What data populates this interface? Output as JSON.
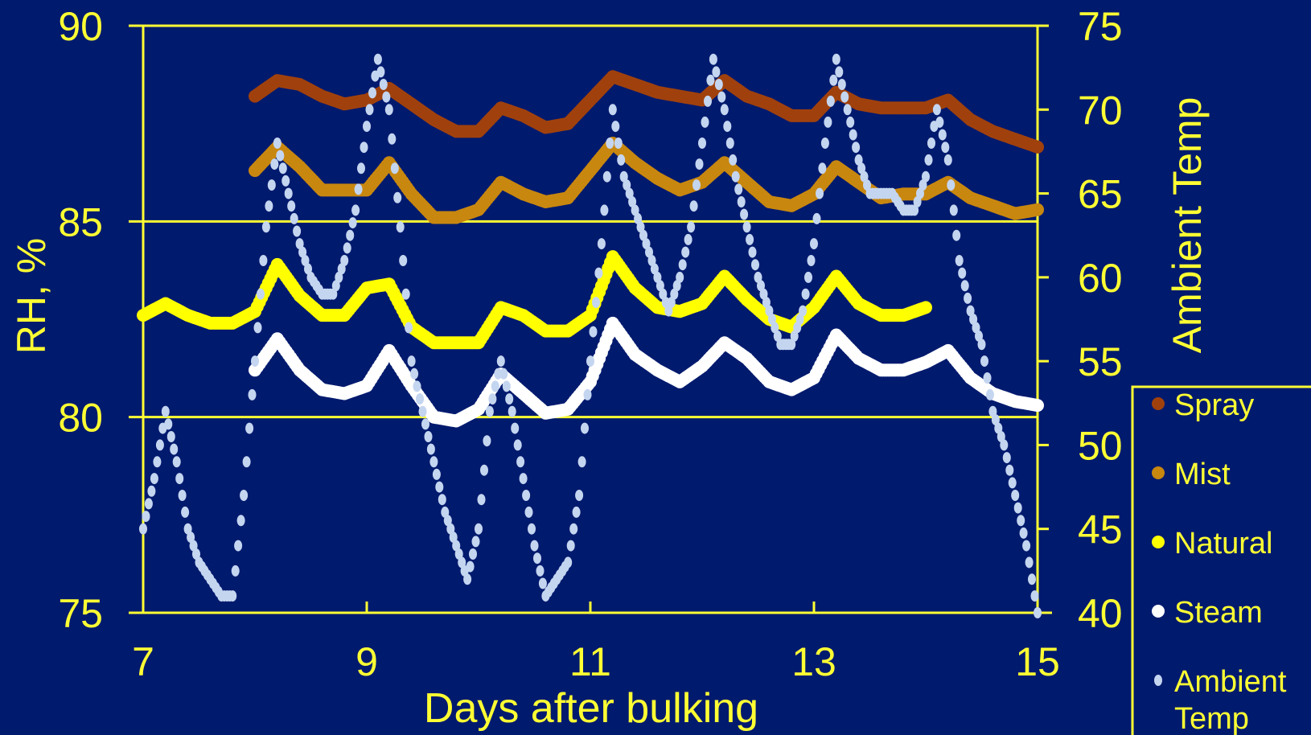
{
  "chart_data": {
    "type": "scatter",
    "title": "",
    "xlabel": "Days after bulking",
    "ylabel": "RH, %",
    "y2label": "Ambient Temp",
    "xlim": [
      7,
      15
    ],
    "ylim": [
      75,
      90
    ],
    "y2lim": [
      40,
      75
    ],
    "xticks": [
      "7",
      "9",
      "11",
      "13",
      "15"
    ],
    "yticks": [
      "75",
      "80",
      "85",
      "90"
    ],
    "y2ticks": [
      "40",
      "45",
      "50",
      "55",
      "60",
      "65",
      "70",
      "75"
    ],
    "grid": "horizontal at 80, 85, 90",
    "legend_placement": "bottom-right",
    "background_color": "#001a6e",
    "axis_color": "#ffff33",
    "series": [
      {
        "name": "Spray",
        "color": "#a0410d",
        "axis": "left",
        "x": [
          8.0,
          8.2,
          8.4,
          8.6,
          8.8,
          9.0,
          9.2,
          9.4,
          9.6,
          9.8,
          10.0,
          10.2,
          10.4,
          10.6,
          10.8,
          11.0,
          11.2,
          11.4,
          11.6,
          11.8,
          12.0,
          12.2,
          12.4,
          12.6,
          12.8,
          13.0,
          13.2,
          13.4,
          13.6,
          13.8,
          14.0,
          14.2,
          14.4,
          14.6,
          14.8,
          15.0
        ],
        "y": [
          88.2,
          88.6,
          88.5,
          88.2,
          88.0,
          88.1,
          88.4,
          88.0,
          87.6,
          87.3,
          87.3,
          87.9,
          87.7,
          87.4,
          87.5,
          88.1,
          88.7,
          88.5,
          88.3,
          88.2,
          88.1,
          88.6,
          88.2,
          88.0,
          87.7,
          87.7,
          88.3,
          88.0,
          87.9,
          87.9,
          87.9,
          88.1,
          87.6,
          87.3,
          87.1,
          86.9
        ]
      },
      {
        "name": "Mist",
        "color": "#c8870f",
        "axis": "left",
        "x": [
          8.0,
          8.2,
          8.4,
          8.6,
          8.8,
          9.0,
          9.2,
          9.4,
          9.6,
          9.8,
          10.0,
          10.2,
          10.4,
          10.6,
          10.8,
          11.0,
          11.2,
          11.4,
          11.6,
          11.8,
          12.0,
          12.2,
          12.4,
          12.6,
          12.8,
          13.0,
          13.2,
          13.4,
          13.6,
          13.8,
          14.0,
          14.2,
          14.4,
          14.6,
          14.8,
          15.0
        ],
        "y": [
          86.3,
          86.9,
          86.4,
          85.8,
          85.8,
          85.8,
          86.5,
          85.7,
          85.1,
          85.1,
          85.3,
          86.0,
          85.7,
          85.5,
          85.6,
          86.3,
          87.0,
          86.5,
          86.1,
          85.8,
          86.0,
          86.5,
          86.0,
          85.5,
          85.4,
          85.7,
          86.4,
          86.0,
          85.6,
          85.7,
          85.7,
          86.0,
          85.6,
          85.4,
          85.2,
          85.3
        ]
      },
      {
        "name": "Natural",
        "color": "#ffff00",
        "axis": "left",
        "x": [
          7.0,
          7.2,
          7.4,
          7.6,
          7.8,
          8.0,
          8.2,
          8.4,
          8.6,
          8.8,
          9.0,
          9.2,
          9.4,
          9.6,
          9.8,
          10.0,
          10.2,
          10.4,
          10.6,
          10.8,
          11.0,
          11.2,
          11.4,
          11.6,
          11.8,
          12.0,
          12.2,
          12.4,
          12.6,
          12.8,
          13.0,
          13.2,
          13.4,
          13.6,
          13.8,
          14.0
        ],
        "y": [
          82.6,
          82.9,
          82.6,
          82.4,
          82.4,
          82.7,
          83.9,
          83.1,
          82.6,
          82.6,
          83.3,
          83.4,
          82.3,
          81.9,
          81.9,
          81.9,
          82.8,
          82.6,
          82.2,
          82.2,
          82.6,
          84.1,
          83.3,
          82.8,
          82.7,
          82.9,
          83.6,
          83.0,
          82.5,
          82.3,
          82.8,
          83.6,
          82.9,
          82.6,
          82.6,
          82.8
        ]
      },
      {
        "name": "Steam",
        "color": "#ffffff",
        "axis": "left",
        "x": [
          8.0,
          8.2,
          8.4,
          8.6,
          8.8,
          9.0,
          9.2,
          9.4,
          9.6,
          9.8,
          10.0,
          10.2,
          10.4,
          10.6,
          10.8,
          11.0,
          11.2,
          11.4,
          11.6,
          11.8,
          12.0,
          12.2,
          12.4,
          12.6,
          12.8,
          13.0,
          13.2,
          13.4,
          13.6,
          13.8,
          14.0,
          14.2,
          14.4,
          14.6,
          14.8,
          15.0
        ],
        "y": [
          81.2,
          82.0,
          81.2,
          80.7,
          80.6,
          80.8,
          81.7,
          80.8,
          80.0,
          79.9,
          80.2,
          81.1,
          80.6,
          80.1,
          80.2,
          80.9,
          82.4,
          81.6,
          81.2,
          80.9,
          81.3,
          81.9,
          81.5,
          80.9,
          80.7,
          81.0,
          82.1,
          81.5,
          81.2,
          81.2,
          81.4,
          81.7,
          81.0,
          80.6,
          80.4,
          80.3
        ]
      },
      {
        "name": "Ambient Temp",
        "color": "#c4d5f0",
        "axis": "right",
        "x": [
          7.0,
          7.1,
          7.2,
          7.3,
          7.4,
          7.5,
          7.6,
          7.7,
          7.8,
          7.9,
          8.0,
          8.1,
          8.2,
          8.3,
          8.4,
          8.5,
          8.6,
          8.7,
          8.8,
          8.9,
          9.0,
          9.1,
          9.2,
          9.3,
          9.4,
          9.5,
          9.6,
          9.7,
          9.8,
          9.9,
          10.0,
          10.1,
          10.2,
          10.3,
          10.4,
          10.5,
          10.6,
          10.7,
          10.8,
          10.9,
          11.0,
          11.1,
          11.2,
          11.3,
          11.4,
          11.5,
          11.6,
          11.7,
          11.8,
          11.9,
          12.0,
          12.1,
          12.2,
          12.3,
          12.4,
          12.5,
          12.6,
          12.7,
          12.8,
          12.9,
          13.0,
          13.1,
          13.2,
          13.3,
          13.4,
          13.5,
          13.6,
          13.7,
          13.8,
          13.9,
          14.0,
          14.1,
          14.2,
          14.3,
          14.4,
          14.5,
          14.6,
          14.7,
          14.8,
          14.9,
          15.0
        ],
        "y": [
          45,
          48,
          52,
          49,
          45,
          43,
          42,
          41,
          41,
          47,
          55,
          63,
          68,
          65,
          62,
          60,
          59,
          59,
          61,
          64,
          69,
          73,
          70,
          63,
          55,
          52,
          49,
          46,
          44,
          42,
          45,
          52,
          55,
          52,
          48,
          44,
          41,
          42,
          43,
          47,
          55,
          62,
          70,
          66,
          64,
          62,
          60,
          58,
          60,
          63,
          68,
          73,
          70,
          66,
          63,
          60,
          58,
          56,
          56,
          58,
          62,
          68,
          73,
          70,
          67,
          65,
          65,
          65,
          64,
          64,
          66,
          70,
          67,
          61,
          58,
          56,
          52,
          50,
          47,
          44,
          40
        ]
      }
    ]
  }
}
